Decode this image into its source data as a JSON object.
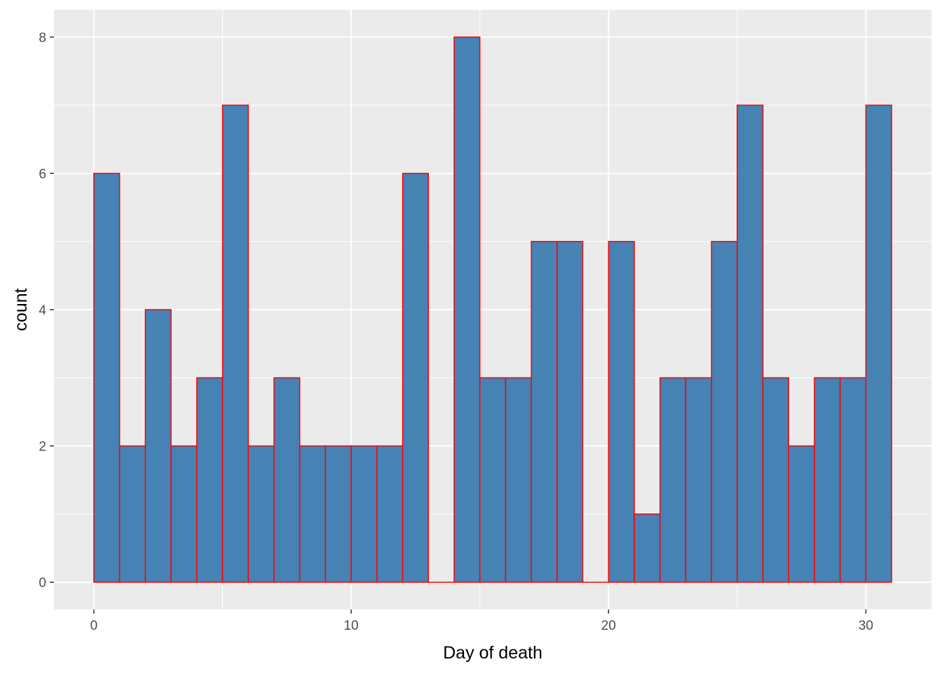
{
  "chart_data": {
    "type": "histogram",
    "xlabel": "Day of death",
    "ylabel": "count",
    "bin_width": 1,
    "bin_start": 0,
    "counts": [
      6,
      2,
      4,
      2,
      3,
      7,
      2,
      3,
      2,
      2,
      2,
      2,
      6,
      0,
      8,
      3,
      3,
      5,
      5,
      0,
      5,
      1,
      3,
      3,
      5,
      7,
      3,
      2,
      3,
      3,
      7
    ],
    "xlim": [
      -1.55,
      32.55
    ],
    "ylim": [
      -0.4,
      8.4
    ],
    "x_ticks": [
      0,
      10,
      20,
      30
    ],
    "x_tick_labels": [
      "0",
      "10",
      "20",
      "30"
    ],
    "y_ticks": [
      0,
      2,
      4,
      6,
      8
    ],
    "y_tick_labels": [
      "0",
      "2",
      "4",
      "6",
      "8"
    ],
    "grid": true,
    "bar_fill": "#4682B4",
    "bar_stroke": "#FF0000",
    "panel_background": "#EBEBEB",
    "grid_color": "#FFFFFF"
  }
}
